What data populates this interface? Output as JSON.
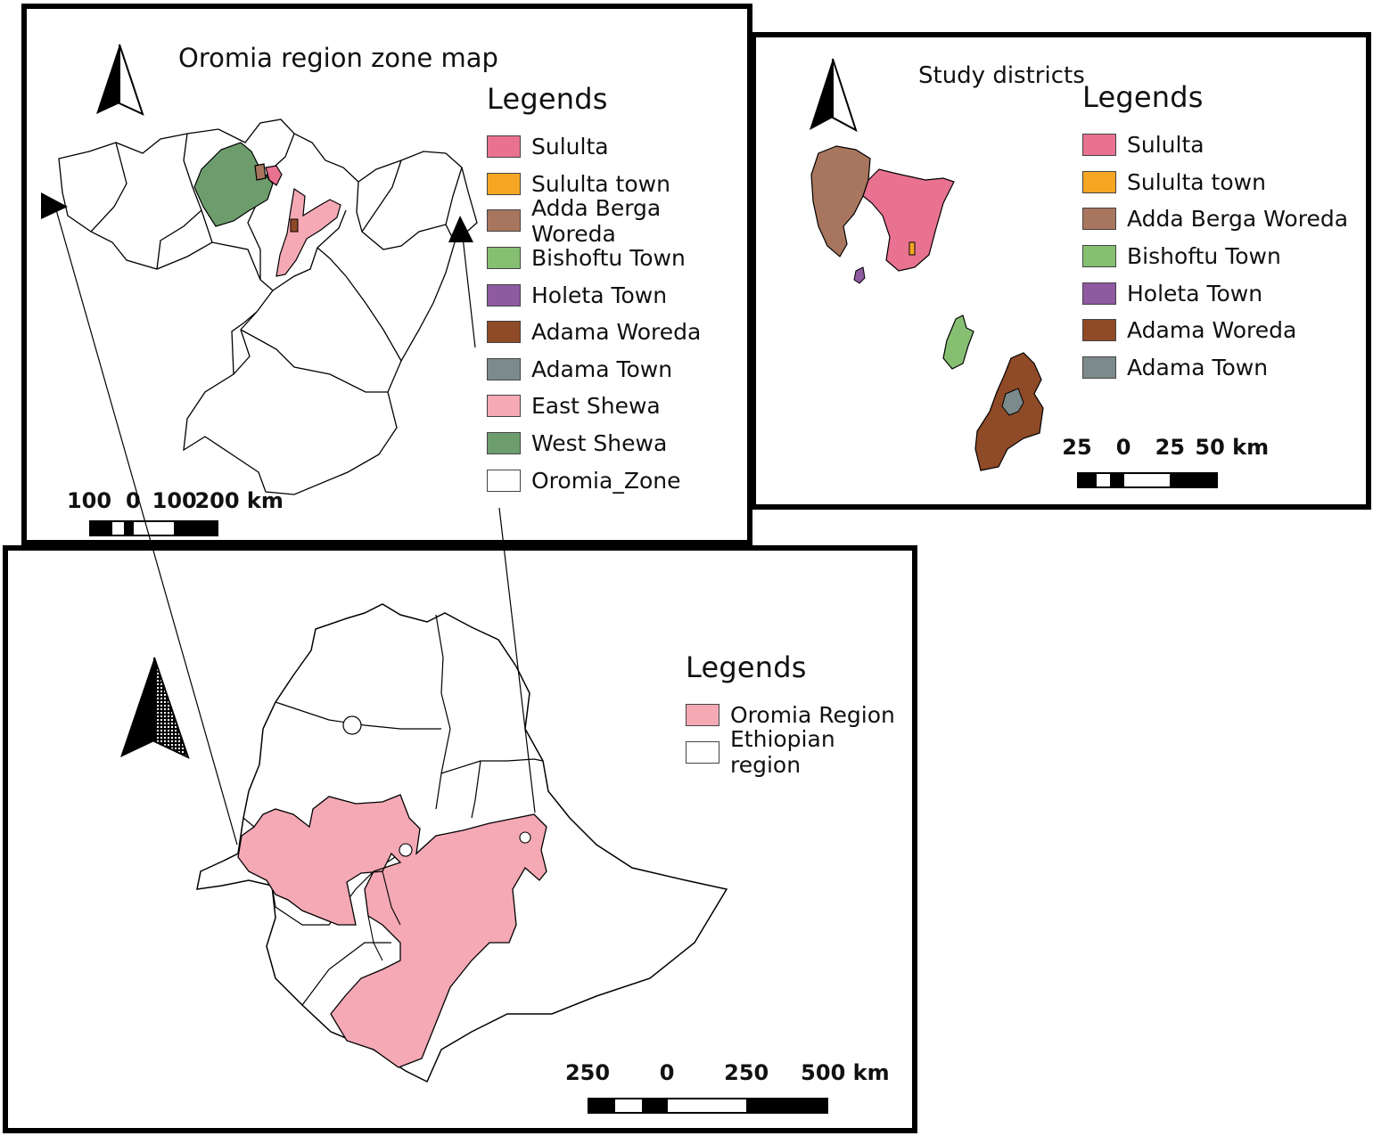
{
  "zone_map": {
    "title": "Oromia region  zone map",
    "legend_title": "Legends",
    "legend": [
      {
        "label": "Sululta",
        "color": "#e8728f"
      },
      {
        "label": "Sululta town",
        "color": "#f5a623"
      },
      {
        "label": "Adda Berga Woreda",
        "color": "#a8765e"
      },
      {
        "label": "Bishoftu Town",
        "color": "#86bf72"
      },
      {
        "label": "Holeta Town",
        "color": "#8e5aa0"
      },
      {
        "label": "Adama Woreda",
        "color": "#8f4a27"
      },
      {
        "label": "Adama Town",
        "color": "#7d8a8b"
      },
      {
        "label": "East Shewa",
        "color": "#f4a9b5"
      },
      {
        "label": "West Shewa",
        "color": "#6e9d6d"
      },
      {
        "label": "Oromia_Zone",
        "color": "#ffffff"
      }
    ],
    "scale_labels": [
      "100",
      "0",
      "100",
      "200 km"
    ],
    "north_icon": "north-arrow-icon"
  },
  "study_map": {
    "title": "Study districts",
    "legend_title": "Legends",
    "legend": [
      {
        "label": "Sululta",
        "color": "#e8728f"
      },
      {
        "label": "Sululta town",
        "color": "#f5a623"
      },
      {
        "label": "Adda Berga Woreda",
        "color": "#a8765e"
      },
      {
        "label": "Bishoftu Town",
        "color": "#86bf72"
      },
      {
        "label": "Holeta Town",
        "color": "#8e5aa0"
      },
      {
        "label": "Adama Woreda",
        "color": "#8f4a27"
      },
      {
        "label": "Adama Town",
        "color": "#7d8a8b"
      }
    ],
    "scale_labels": [
      "25",
      "0",
      "25",
      "50 km"
    ],
    "north_icon": "north-arrow-icon"
  },
  "ethiopia_map": {
    "legend_title": "Legends",
    "legend": [
      {
        "label": "Oromia Region",
        "color": "#f4a9b5"
      },
      {
        "label": "Ethiopian region",
        "color": "#ffffff"
      }
    ],
    "scale_labels": [
      "250",
      "0",
      "250",
      "500 km"
    ],
    "north_icon": "north-arrow-icon"
  }
}
